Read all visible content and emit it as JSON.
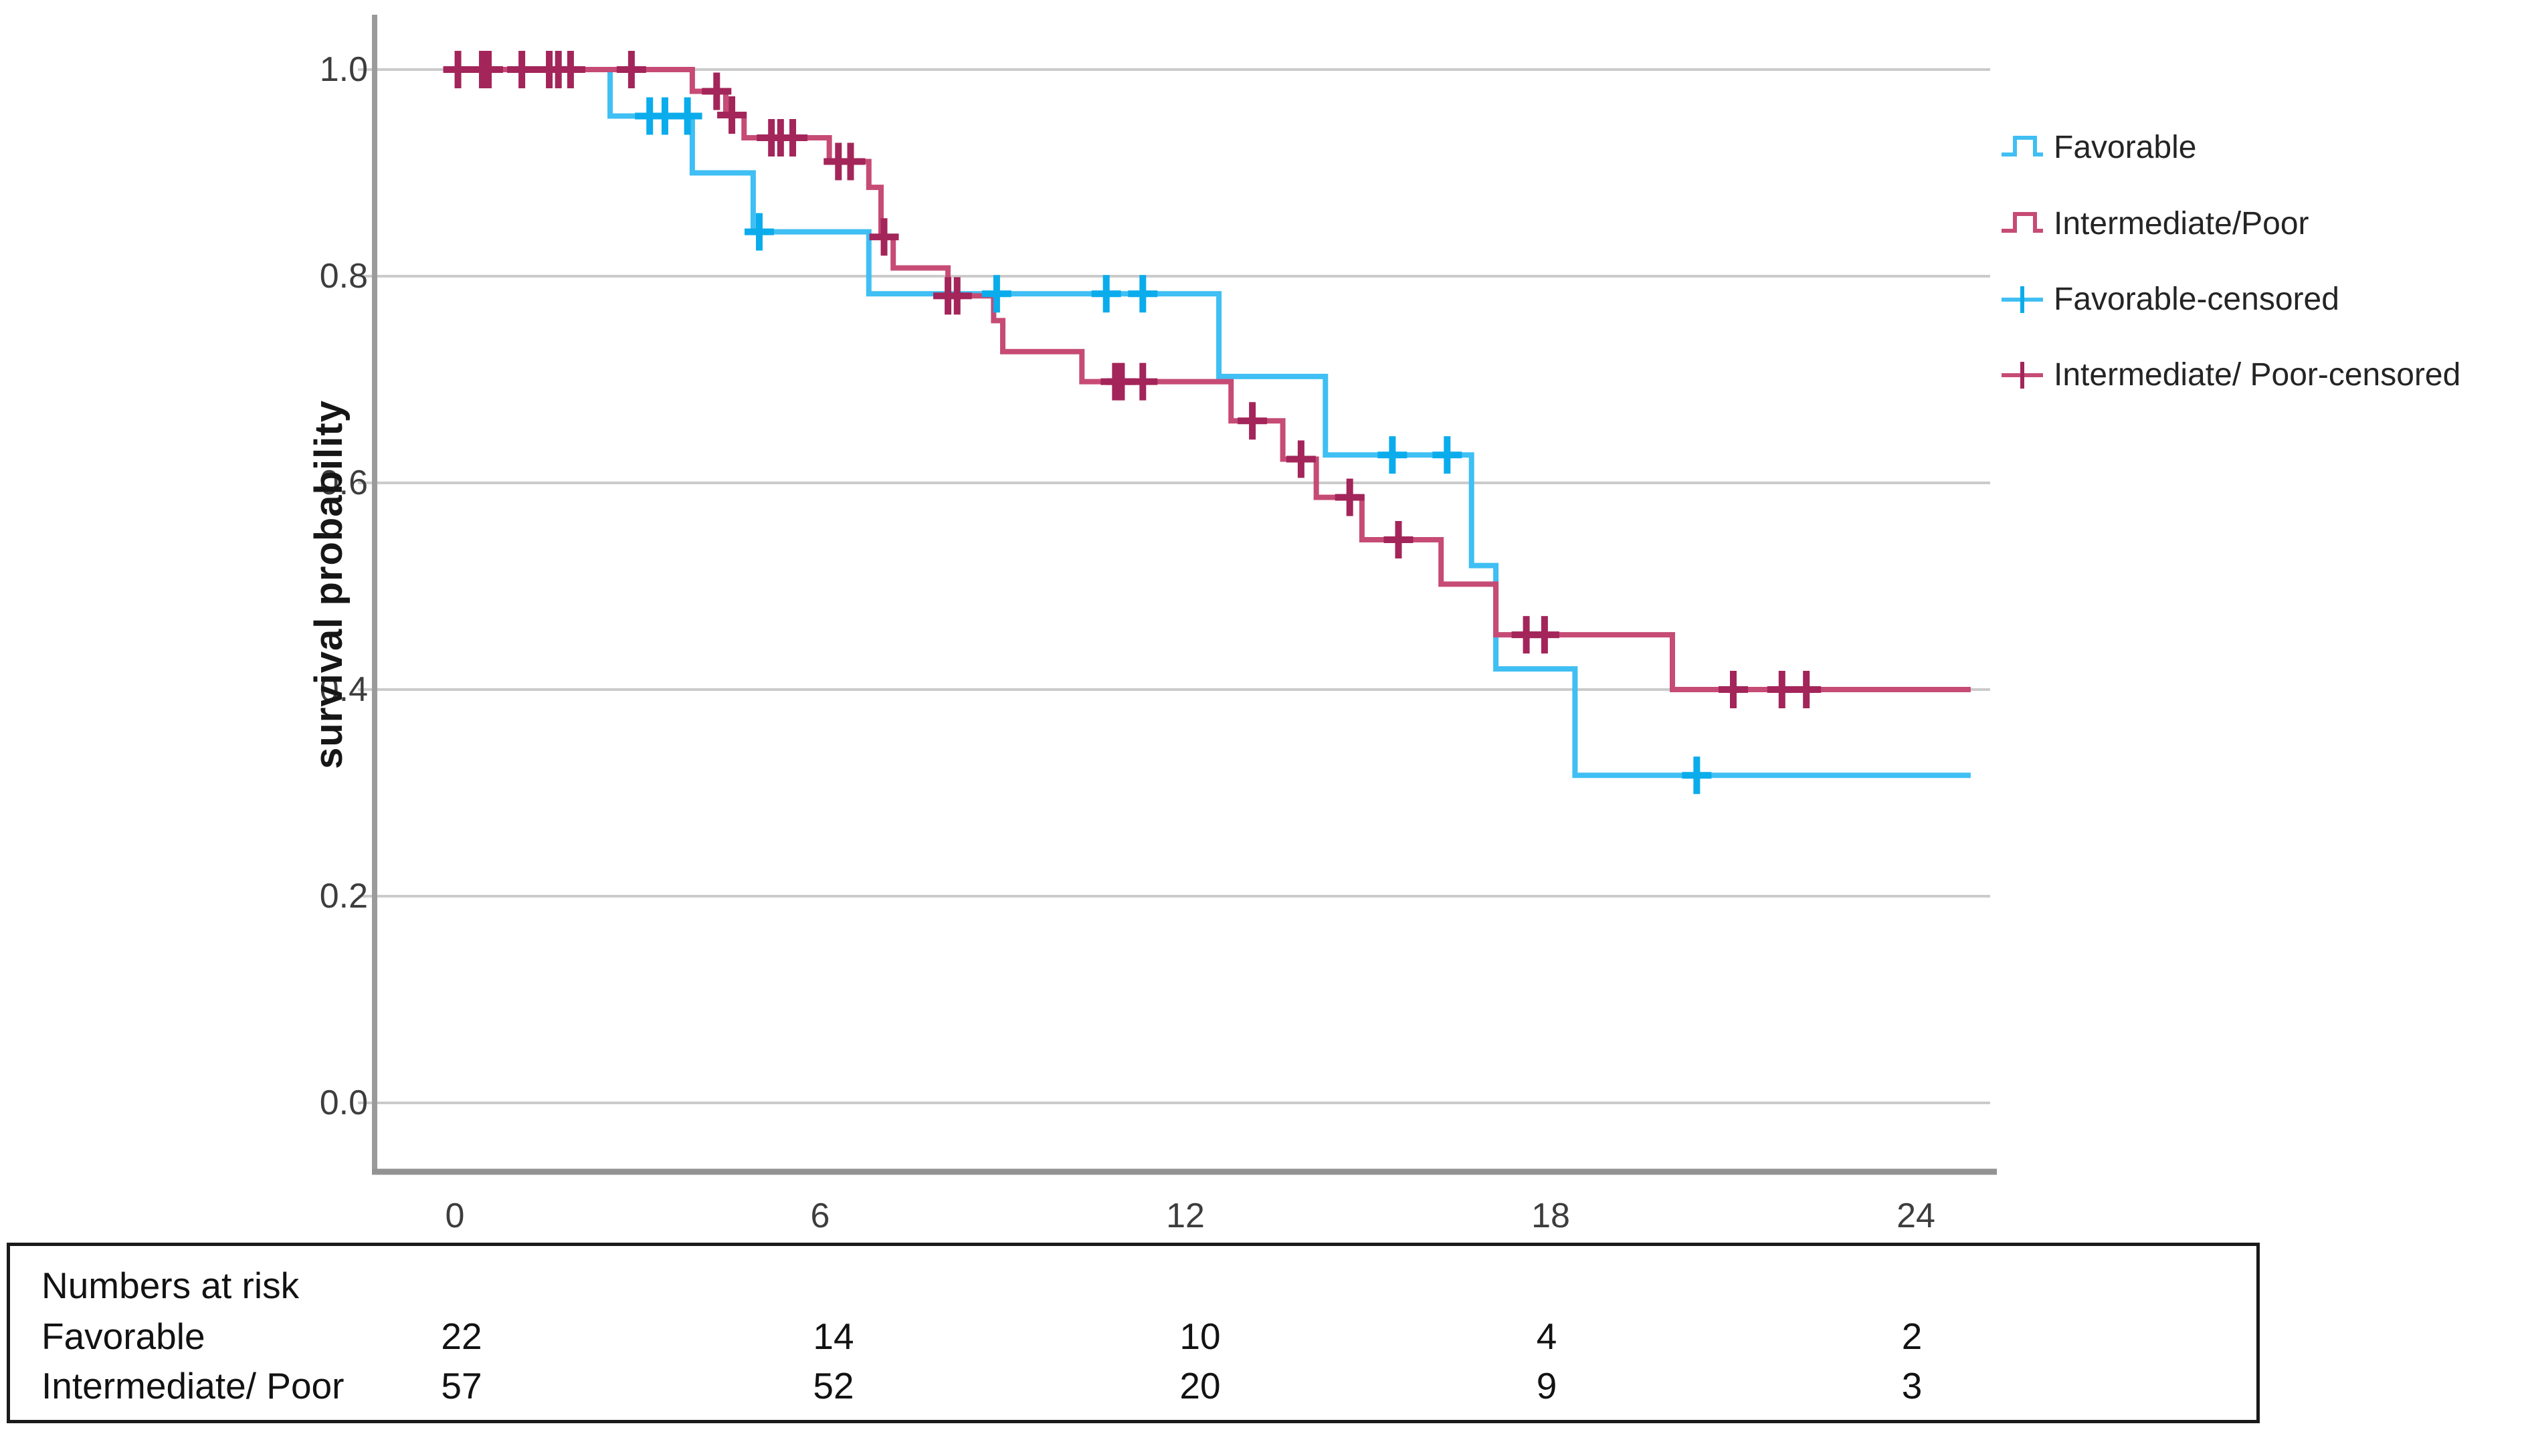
{
  "chart_data": {
    "type": "line",
    "subtype": "kaplan-meier-step",
    "title": "",
    "xlabel": "",
    "ylabel": "survival probability",
    "xlim": [
      0,
      25.2
    ],
    "ylim": [
      0.0,
      1.05
    ],
    "x_ticks": [
      0,
      6,
      12,
      18,
      24
    ],
    "x_tick_labels": [
      "0",
      "6",
      "12",
      "18",
      "24"
    ],
    "y_ticks": [
      1.0,
      0.8,
      0.6,
      0.4,
      0.2,
      0.0
    ],
    "y_tick_labels": [
      "1.0",
      "0.8",
      "0.6",
      "0.4",
      "0.2",
      "0.0"
    ],
    "grid": "horizontal",
    "gridline_color": "#cbcbcb",
    "axis_color": "#9a9a9a",
    "legend_position": "right-top",
    "series": [
      {
        "name": "Favorable",
        "color": "#3fbff3",
        "censor_color": "#0bacec",
        "steps": [
          [
            0,
            1.0
          ],
          [
            2.55,
            0.955
          ],
          [
            3.9,
            0.9
          ],
          [
            4.9,
            0.843
          ],
          [
            6.8,
            0.783
          ],
          [
            12.55,
            0.703
          ],
          [
            14.3,
            0.627
          ],
          [
            16.7,
            0.52
          ],
          [
            17.1,
            0.42
          ],
          [
            18.4,
            0.317
          ]
        ],
        "end_time": 24.9,
        "censored": [
          [
            3.2,
            0.955
          ],
          [
            3.45,
            0.955
          ],
          [
            3.82,
            0.955
          ],
          [
            5.0,
            0.843
          ],
          [
            8.9,
            0.783
          ],
          [
            10.7,
            0.783
          ],
          [
            11.3,
            0.783
          ],
          [
            15.4,
            0.627
          ],
          [
            16.3,
            0.627
          ],
          [
            20.4,
            0.317
          ]
        ]
      },
      {
        "name": "Intermediate/Poor",
        "color": "#c64b75",
        "censor_color": "#a3255a",
        "steps": [
          [
            0,
            1.0
          ],
          [
            3.9,
            0.979
          ],
          [
            4.45,
            0.956
          ],
          [
            4.75,
            0.934
          ],
          [
            6.15,
            0.911
          ],
          [
            6.8,
            0.886
          ],
          [
            7.0,
            0.838
          ],
          [
            7.2,
            0.808
          ],
          [
            8.1,
            0.781
          ],
          [
            8.85,
            0.757
          ],
          [
            9.0,
            0.727
          ],
          [
            10.3,
            0.698
          ],
          [
            12.75,
            0.66
          ],
          [
            13.6,
            0.623
          ],
          [
            14.15,
            0.586
          ],
          [
            14.9,
            0.545
          ],
          [
            16.2,
            0.502
          ],
          [
            17.1,
            0.453
          ],
          [
            20.0,
            0.4
          ]
        ],
        "end_time": 24.9,
        "censored": [
          [
            0.05,
            1.0
          ],
          [
            0.45,
            1.0
          ],
          [
            0.55,
            1.0
          ],
          [
            1.1,
            1.0
          ],
          [
            1.55,
            1.0
          ],
          [
            1.7,
            1.0
          ],
          [
            1.9,
            1.0
          ],
          [
            2.9,
            1.0
          ],
          [
            4.3,
            0.979
          ],
          [
            4.55,
            0.956
          ],
          [
            5.2,
            0.934
          ],
          [
            5.35,
            0.934
          ],
          [
            5.55,
            0.934
          ],
          [
            6.3,
            0.911
          ],
          [
            6.5,
            0.911
          ],
          [
            7.05,
            0.838
          ],
          [
            8.1,
            0.781
          ],
          [
            8.25,
            0.781
          ],
          [
            10.85,
            0.698
          ],
          [
            10.95,
            0.698
          ],
          [
            11.3,
            0.698
          ],
          [
            13.1,
            0.66
          ],
          [
            13.9,
            0.623
          ],
          [
            14.7,
            0.586
          ],
          [
            15.5,
            0.545
          ],
          [
            17.6,
            0.453
          ],
          [
            17.9,
            0.453
          ],
          [
            21.0,
            0.4
          ],
          [
            21.8,
            0.4
          ],
          [
            22.2,
            0.4
          ]
        ]
      }
    ]
  },
  "legend": {
    "items": [
      {
        "label": "Favorable",
        "type": "step",
        "series": 0
      },
      {
        "label": "Intermediate/Poor",
        "type": "step",
        "series": 1
      },
      {
        "label": "Favorable-censored",
        "type": "censor",
        "series": 0
      },
      {
        "label": "Intermediate/ Poor-censored",
        "type": "censor",
        "series": 1
      }
    ]
  },
  "risk_table": {
    "title": "Numbers at risk",
    "rows": [
      {
        "label": "Favorable",
        "counts": [
          "22",
          "14",
          "10",
          "4",
          "2"
        ]
      },
      {
        "label": "Intermediate/ Poor",
        "counts": [
          "57",
          "52",
          "20",
          "9",
          "3"
        ]
      }
    ]
  }
}
